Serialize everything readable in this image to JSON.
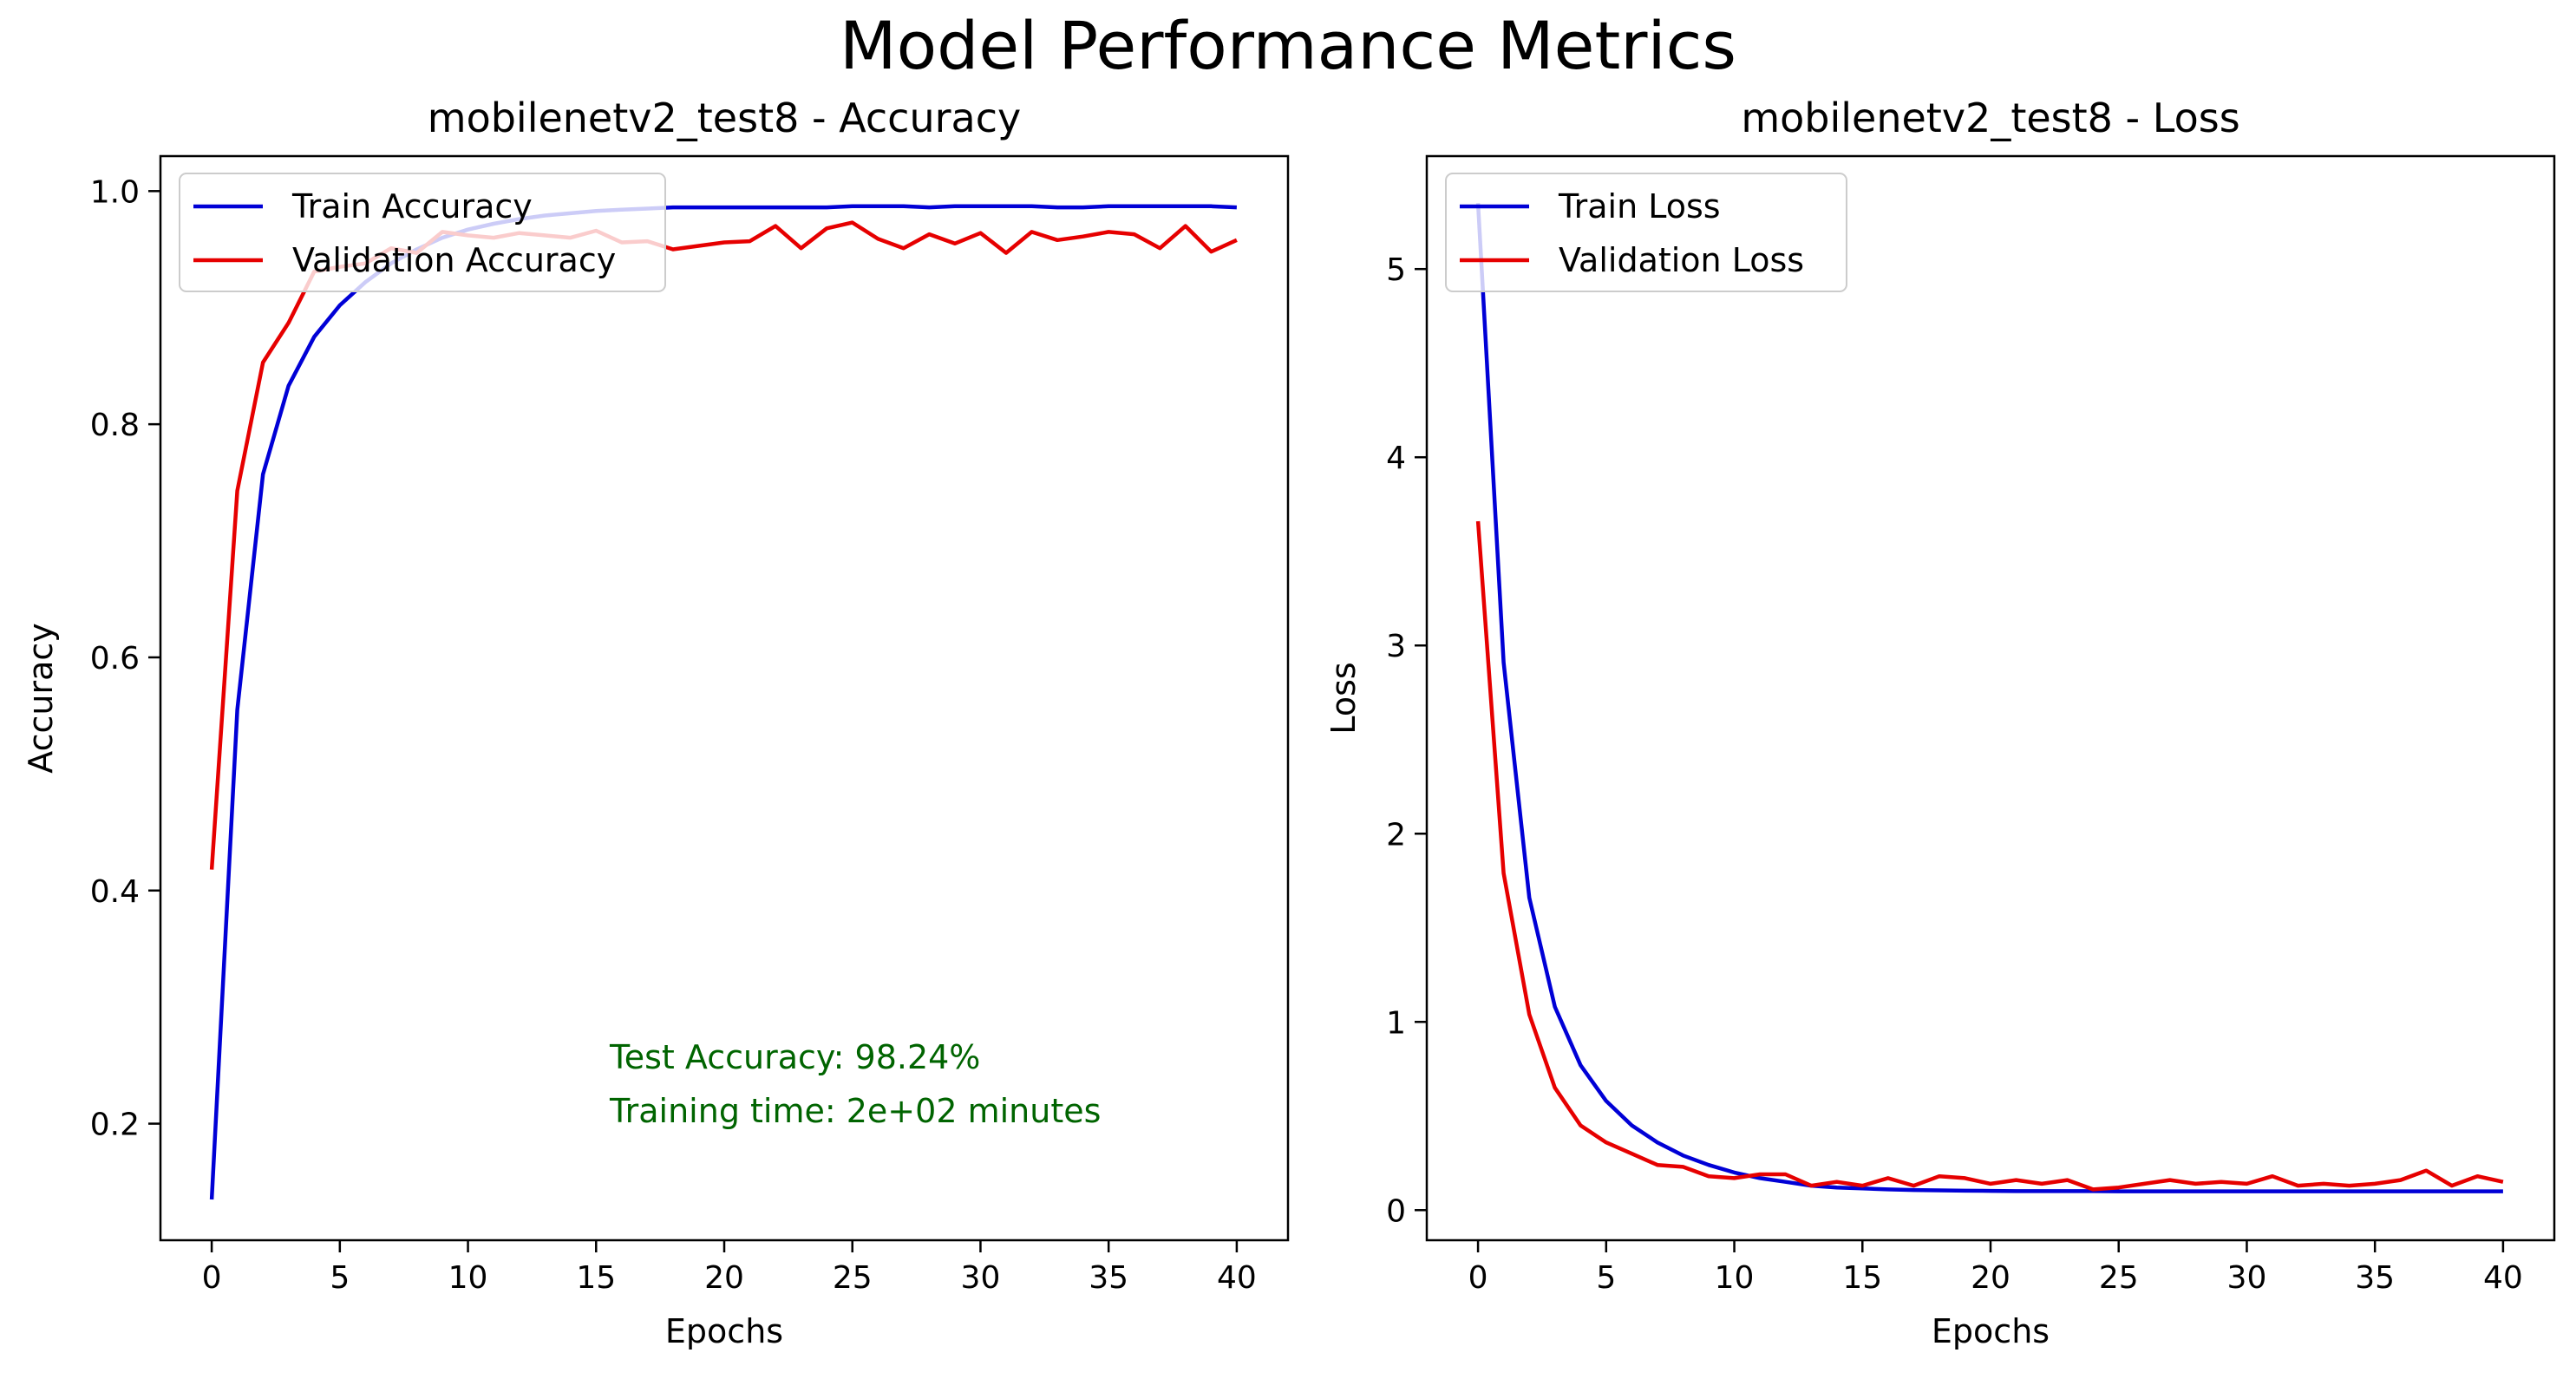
{
  "figure": {
    "suptitle": "Model Performance Metrics"
  },
  "colors": {
    "train": "#0000d6",
    "validation": "#e60000",
    "annotation": "#006400",
    "axes": "#000000"
  },
  "chart_data": [
    {
      "type": "line",
      "title": "mobilenetv2_test8 - Accuracy",
      "xlabel": "Epochs",
      "ylabel": "Accuracy",
      "xlim": [
        -2,
        42
      ],
      "ylim": [
        0.1,
        1.03
      ],
      "xticks": [
        0,
        5,
        10,
        15,
        20,
        25,
        30,
        35,
        40
      ],
      "xtick_labels": [
        "0",
        "5",
        "10",
        "15",
        "20",
        "25",
        "30",
        "35",
        "40"
      ],
      "yticks": [
        0.2,
        0.4,
        0.6,
        0.8,
        1.0
      ],
      "ytick_labels": [
        "0.2",
        "0.4",
        "0.6",
        "0.8",
        "1.0"
      ],
      "grid": false,
      "legend_position": "top-left",
      "x": [
        0,
        1,
        2,
        3,
        4,
        5,
        6,
        7,
        8,
        9,
        10,
        11,
        12,
        13,
        14,
        15,
        16,
        17,
        18,
        19,
        20,
        21,
        22,
        23,
        24,
        25,
        26,
        27,
        28,
        29,
        30,
        31,
        32,
        33,
        34,
        35,
        36,
        37,
        38,
        39,
        40
      ],
      "series": [
        {
          "name": "Train Accuracy",
          "color": "#0000d6",
          "values": [
            0.135,
            0.555,
            0.757,
            0.833,
            0.875,
            0.902,
            0.922,
            0.938,
            0.95,
            0.96,
            0.967,
            0.972,
            0.976,
            0.979,
            0.981,
            0.983,
            0.984,
            0.985,
            0.986,
            0.986,
            0.986,
            0.986,
            0.986,
            0.986,
            0.986,
            0.987,
            0.987,
            0.987,
            0.986,
            0.987,
            0.987,
            0.987,
            0.987,
            0.986,
            0.986,
            0.987,
            0.987,
            0.987,
            0.987,
            0.987,
            0.986
          ]
        },
        {
          "name": "Validation Accuracy",
          "color": "#e60000",
          "values": [
            0.418,
            0.743,
            0.853,
            0.887,
            0.931,
            0.935,
            0.938,
            0.951,
            0.947,
            0.965,
            0.962,
            0.96,
            0.964,
            0.962,
            0.96,
            0.966,
            0.956,
            0.957,
            0.95,
            0.953,
            0.956,
            0.957,
            0.97,
            0.951,
            0.968,
            0.973,
            0.959,
            0.951,
            0.963,
            0.955,
            0.964,
            0.947,
            0.965,
            0.958,
            0.961,
            0.965,
            0.963,
            0.951,
            0.97,
            0.948,
            0.958
          ]
        }
      ],
      "annotations": [
        "Test Accuracy: 98.24%",
        "Training time: 2e+02 minutes"
      ]
    },
    {
      "type": "line",
      "title": "mobilenetv2_test8 - Loss",
      "xlabel": "Epochs",
      "ylabel": "Loss",
      "xlim": [
        -2,
        42
      ],
      "ylim": [
        -0.16,
        5.6
      ],
      "xticks": [
        0,
        5,
        10,
        15,
        20,
        25,
        30,
        35,
        40
      ],
      "xtick_labels": [
        "0",
        "5",
        "10",
        "15",
        "20",
        "25",
        "30",
        "35",
        "40"
      ],
      "yticks": [
        0,
        1,
        2,
        3,
        4,
        5
      ],
      "ytick_labels": [
        "0",
        "1",
        "2",
        "3",
        "4",
        "5"
      ],
      "grid": false,
      "legend_position": "top-left",
      "x": [
        0,
        1,
        2,
        3,
        4,
        5,
        6,
        7,
        8,
        9,
        10,
        11,
        12,
        13,
        14,
        15,
        16,
        17,
        18,
        19,
        20,
        21,
        22,
        23,
        24,
        25,
        26,
        27,
        28,
        29,
        30,
        31,
        32,
        33,
        34,
        35,
        36,
        37,
        38,
        39,
        40
      ],
      "series": [
        {
          "name": "Train Loss",
          "color": "#0000d6",
          "values": [
            5.35,
            2.91,
            1.66,
            1.08,
            0.77,
            0.58,
            0.45,
            0.36,
            0.29,
            0.24,
            0.2,
            0.17,
            0.15,
            0.13,
            0.12,
            0.115,
            0.11,
            0.107,
            0.105,
            0.103,
            0.102,
            0.101,
            0.101,
            0.101,
            0.101,
            0.1,
            0.1,
            0.1,
            0.1,
            0.1,
            0.1,
            0.1,
            0.1,
            0.1,
            0.1,
            0.1,
            0.1,
            0.1,
            0.1,
            0.1,
            0.1
          ]
        },
        {
          "name": "Validation Loss",
          "color": "#e60000",
          "values": [
            3.66,
            1.79,
            1.04,
            0.65,
            0.45,
            0.36,
            0.3,
            0.24,
            0.23,
            0.18,
            0.17,
            0.19,
            0.19,
            0.13,
            0.15,
            0.13,
            0.17,
            0.13,
            0.18,
            0.17,
            0.14,
            0.16,
            0.14,
            0.16,
            0.11,
            0.12,
            0.14,
            0.16,
            0.14,
            0.15,
            0.14,
            0.18,
            0.13,
            0.14,
            0.13,
            0.14,
            0.16,
            0.21,
            0.13,
            0.18,
            0.15
          ]
        }
      ]
    }
  ]
}
